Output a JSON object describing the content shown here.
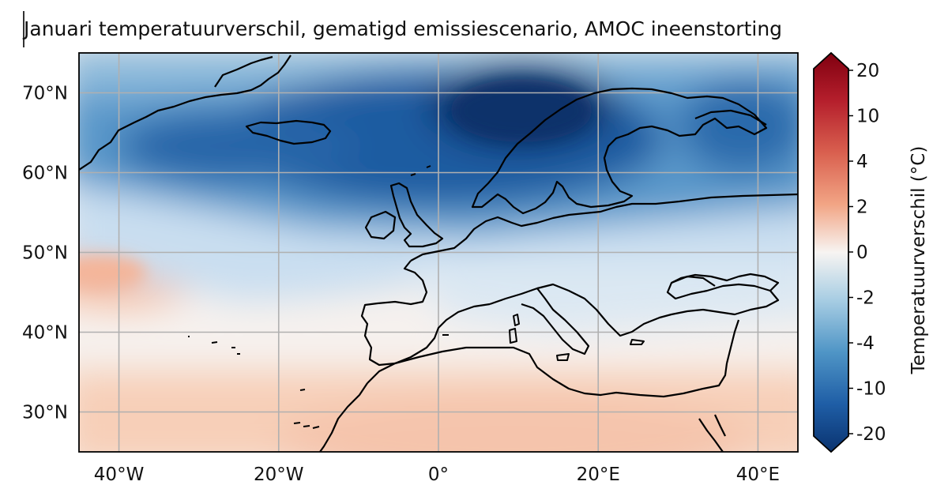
{
  "title": "Januari temperatuurverschil, gematigd emissiescenario, AMOC ineenstorting",
  "map": {
    "x_ticks": [
      "40°W",
      "20°W",
      "0°",
      "20°E",
      "40°E"
    ],
    "x_tick_values": [
      -40,
      -20,
      0,
      20,
      40
    ],
    "y_ticks": [
      "70°N",
      "60°N",
      "50°N",
      "40°N",
      "30°N"
    ],
    "y_tick_values": [
      70,
      60,
      50,
      40,
      30
    ],
    "lon_range": [
      -45,
      45
    ],
    "lat_range": [
      25,
      75
    ],
    "grid": true,
    "coastlines": true
  },
  "colorbar": {
    "label": "Temperatuurverschil (°C)",
    "tick_labels": [
      "20",
      "10",
      "4",
      "2",
      "0",
      "-2",
      "-4",
      "-10",
      "-20"
    ],
    "extend": "both",
    "colormap": "RdBu_r"
  },
  "colors": {
    "deep_blue": "#08306b",
    "mid_blue": "#4a8cc4",
    "light_blue": "#c6dbef",
    "neutral": "#f7f4f2",
    "light_red": "#f9d2bd",
    "deep_red": "#67000d"
  }
}
